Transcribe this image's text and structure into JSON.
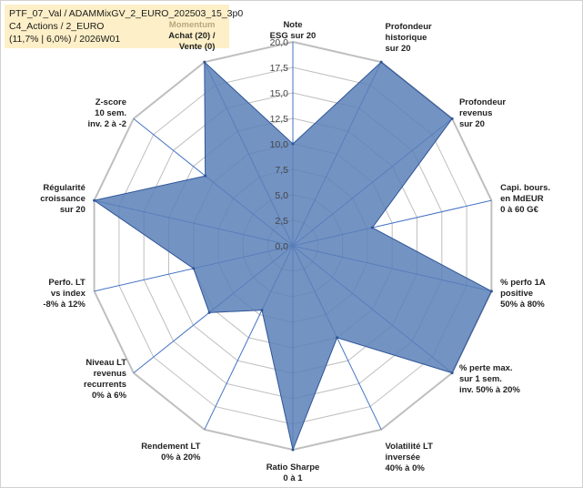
{
  "header": {
    "line1": "PTF_07_Val / ADAMMixGV_2_EURO_202503_15_3p0",
    "line2": "C4_Actions / 2_EURO",
    "line3": "(11,7% | 6,0%) / 2026W01"
  },
  "chart_data": {
    "type": "radar",
    "range": [
      0,
      20
    ],
    "ticks": [
      "0,0",
      "2,5",
      "5,0",
      "7,5",
      "10,0",
      "12,5",
      "15,0",
      "17,5",
      "20,0"
    ],
    "axes": [
      {
        "label": [
          "Note",
          "ESG sur 20"
        ],
        "value": 10
      },
      {
        "label": [
          "Profondeur",
          "historique",
          "sur 20"
        ],
        "value": 20
      },
      {
        "label": [
          "Profondeur",
          "revenus",
          "sur 20"
        ],
        "value": 20
      },
      {
        "label": [
          "Capi. bours.",
          "en MdEUR",
          "0 à 60 G€"
        ],
        "value": 8
      },
      {
        "label": [
          "% perfo 1A",
          "positive",
          "50% à 80%"
        ],
        "value": 20
      },
      {
        "label": [
          "% perte max.",
          "sur 1 sem.",
          "inv. 50% à 20%"
        ],
        "value": 20
      },
      {
        "label": [
          "Volatilité LT",
          "inversée",
          "40% à 0%"
        ],
        "value": 10
      },
      {
        "label": [
          "Ratio Sharpe",
          "0 à 1"
        ],
        "value": 20
      },
      {
        "label": [
          "Rendement LT",
          "0% à 20%"
        ],
        "value": 7
      },
      {
        "label": [
          "Niveau LT",
          "revenus",
          "recurrents",
          "0% à 6%"
        ],
        "value": 10.5
      },
      {
        "label": [
          "Perfo. LT",
          "vs index",
          "-8% à 12%"
        ],
        "value": 10
      },
      {
        "label": [
          "Régularité",
          "croissance",
          "sur 20"
        ],
        "value": 20
      },
      {
        "label": [
          "Z-score",
          "10 sem.",
          "inv. 2 à -2"
        ],
        "value": 11
      },
      {
        "label": [
          "Momentum",
          "Achat (20) /",
          "Vente (0)"
        ],
        "value": 20
      }
    ],
    "colors": {
      "fill": "#5b80b8",
      "stroke": "#2f5597",
      "spoke": "#4472c4",
      "grid": "#bfbfbf"
    }
  }
}
